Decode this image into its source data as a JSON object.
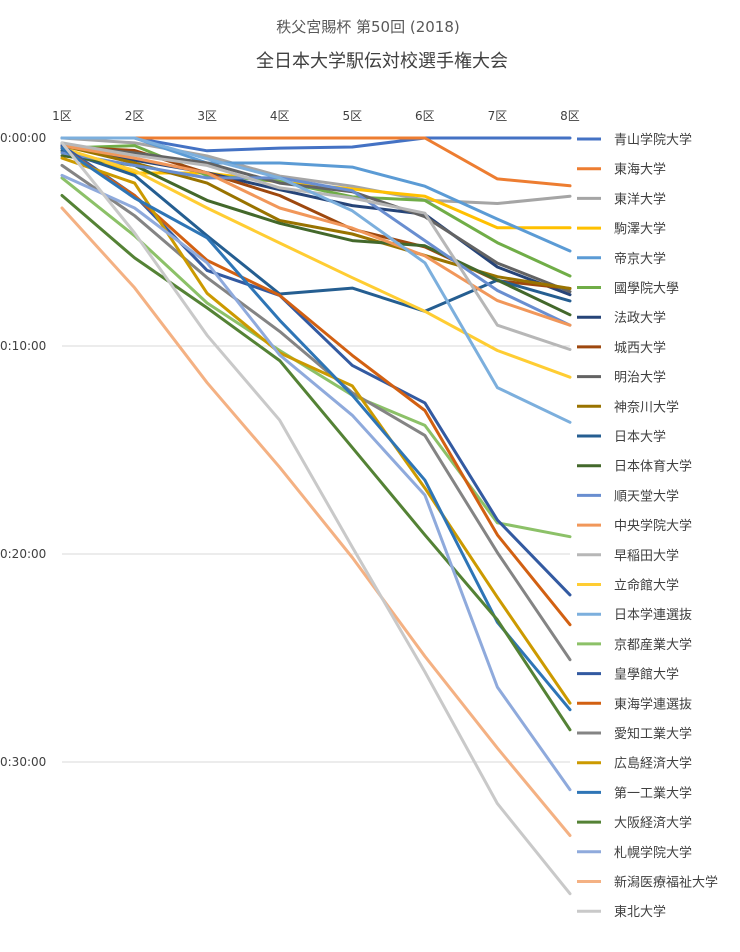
{
  "chart_data": {
    "type": "line",
    "title": "秩父宮賜杯 第50回 (2018)",
    "subtitle": "全日本大学駅伝対校選手権大会",
    "categories": [
      "1区",
      "2区",
      "3区",
      "4区",
      "5区",
      "6区",
      "7区",
      "8区"
    ],
    "y_ticks": [
      "0:00:00",
      "0:10:00",
      "0:20:00",
      "0:30:00"
    ],
    "y_tick_seconds": [
      0,
      600,
      1200,
      1800
    ],
    "ylim_seconds": [
      0,
      2200
    ],
    "y_inverted": true,
    "grid": true,
    "legend_position": "right",
    "series": [
      {
        "name": "青山学院大学",
        "color": "#4472c4",
        "values": [
          0,
          0,
          37,
          29,
          26,
          0,
          0,
          0
        ]
      },
      {
        "name": "東海大学",
        "color": "#ed7d31",
        "values": [
          0,
          0,
          0,
          0,
          0,
          0,
          118,
          138
        ]
      },
      {
        "name": "東洋大学",
        "color": "#a5a5a5",
        "values": [
          0,
          14,
          52,
          110,
          139,
          179,
          189,
          168
        ]
      },
      {
        "name": "駒澤大学",
        "color": "#ffc000",
        "values": [
          40,
          101,
          101,
          127,
          147,
          168,
          259,
          259
        ]
      },
      {
        "name": "帝京大学",
        "color": "#5b9bd5",
        "values": [
          0,
          0,
          72,
          72,
          84,
          139,
          234,
          326
        ]
      },
      {
        "name": "國學院大學",
        "color": "#70ad47",
        "values": [
          29,
          22,
          108,
          125,
          170,
          180,
          302,
          398
        ]
      },
      {
        "name": "法政大学",
        "color": "#264478",
        "values": [
          15,
          64,
          100,
          149,
          195,
          220,
          372,
          452
        ]
      },
      {
        "name": "城西大学",
        "color": "#9e480e",
        "values": [
          26,
          36,
          101,
          166,
          263,
          314,
          412,
          434
        ]
      },
      {
        "name": "明治大学",
        "color": "#636363",
        "values": [
          22,
          43,
          72,
          130,
          155,
          227,
          361,
          443
        ]
      },
      {
        "name": "神奈川大学",
        "color": "#997300",
        "values": [
          22,
          72,
          130,
          238,
          277,
          339,
          400,
          434
        ]
      },
      {
        "name": "日本大学",
        "color": "#255e91",
        "values": [
          36,
          108,
          282,
          450,
          433,
          500,
          410,
          470
        ]
      },
      {
        "name": "日本体育大学",
        "color": "#43682b",
        "values": [
          51,
          79,
          180,
          246,
          296,
          311,
          410,
          510
        ]
      },
      {
        "name": "順天堂大学",
        "color": "#698ed0",
        "values": [
          43,
          79,
          115,
          115,
          152,
          296,
          440,
          540
        ]
      },
      {
        "name": "中央学院大学",
        "color": "#f1975a",
        "values": [
          22,
          58,
          101,
          202,
          260,
          340,
          469,
          540
        ]
      },
      {
        "name": "早稲田大学",
        "color": "#b7b7b7",
        "values": [
          14,
          50,
          79,
          144,
          173,
          217,
          540,
          610
        ]
      },
      {
        "name": "立命館大学",
        "color": "#ffcd33",
        "values": [
          29,
          94,
          202,
          303,
          403,
          500,
          613,
          690
        ]
      },
      {
        "name": "日本学連選抜",
        "color": "#7cafdd",
        "values": [
          0,
          0,
          60,
          115,
          210,
          360,
          720,
          820
        ]
      },
      {
        "name": "京都産業大学",
        "color": "#8cc168",
        "values": [
          115,
          282,
          476,
          613,
          742,
          829,
          1110,
          1150
        ]
      },
      {
        "name": "皇學館大学",
        "color": "#335aa1",
        "values": [
          22,
          166,
          382,
          454,
          656,
          764,
          1102,
          1318
        ]
      },
      {
        "name": "東海学連選抜",
        "color": "#d26012",
        "values": [
          29,
          166,
          353,
          454,
          627,
          786,
          1145,
          1404
        ]
      },
      {
        "name": "愛知工業大学",
        "color": "#848484",
        "values": [
          79,
          224,
          403,
          558,
          735,
          858,
          1196,
          1505
        ]
      },
      {
        "name": "広島経済大学",
        "color": "#cc9a00",
        "values": [
          58,
          130,
          448,
          620,
          715,
          1010,
          1325,
          1630
        ]
      },
      {
        "name": "第一工業大学",
        "color": "#2e75b6",
        "values": [
          29,
          173,
          288,
          526,
          742,
          987,
          1397,
          1649
        ]
      },
      {
        "name": "大阪経済大学",
        "color": "#548235",
        "values": [
          166,
          346,
          490,
          642,
          893,
          1145,
          1390,
          1707
        ]
      },
      {
        "name": "札幌学院大学",
        "color": "#8faadc",
        "values": [
          108,
          202,
          360,
          626,
          800,
          1030,
          1584,
          1880
        ]
      },
      {
        "name": "新潟医療福祉大学",
        "color": "#f4b183",
        "values": [
          202,
          432,
          706,
          950,
          1210,
          1495,
          1760,
          2012
        ]
      },
      {
        "name": "東北大学",
        "color": "#c9c9c9",
        "values": [
          14,
          274,
          569,
          814,
          1180,
          1540,
          1920,
          2180
        ]
      }
    ]
  }
}
